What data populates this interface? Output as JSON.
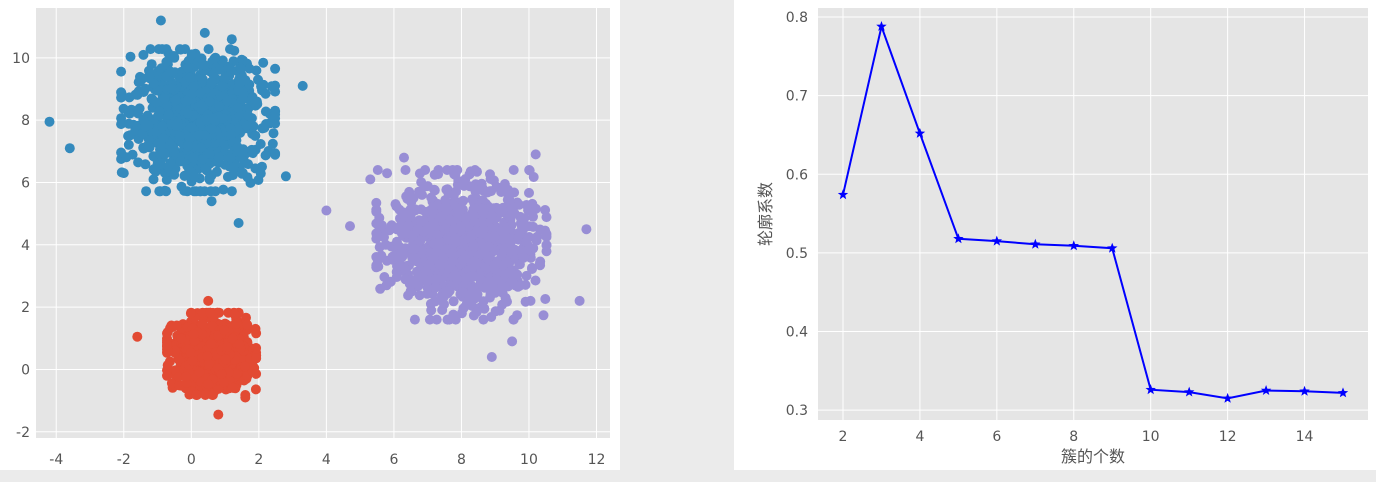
{
  "chart_data": [
    {
      "type": "scatter",
      "title": "",
      "xlabel": "",
      "ylabel": "",
      "xlim": [
        -4.6,
        12.4
      ],
      "ylim": [
        -2.2,
        11.6
      ],
      "xticks": [
        -4,
        -2,
        0,
        2,
        4,
        6,
        8,
        10,
        12
      ],
      "yticks": [
        -2,
        0,
        2,
        4,
        6,
        8,
        10
      ],
      "grid": true,
      "style": "ggplot",
      "series": [
        {
          "color": "#348abd",
          "center": [
            0.2,
            8.0
          ],
          "spread": [
            0.95,
            0.95
          ],
          "count": 1000,
          "outliers": [
            [
              -4.2,
              7.95
            ],
            [
              -0.9,
              11.2
            ],
            [
              0.4,
              10.8
            ],
            [
              1.4,
              4.7
            ],
            [
              3.3,
              9.1
            ],
            [
              2.8,
              6.2
            ],
            [
              1.2,
              10.6
            ],
            [
              -3.6,
              7.1
            ],
            [
              -2.0,
              6.3
            ],
            [
              0.6,
              5.4
            ]
          ]
        },
        {
          "color": "#e24a33",
          "center": [
            0.6,
            0.5
          ],
          "spread": [
            0.55,
            0.55
          ],
          "count": 1000,
          "outliers": [
            [
              -1.6,
              1.05
            ],
            [
              0.8,
              -1.45
            ],
            [
              1.6,
              -0.9
            ],
            [
              0.5,
              2.2
            ],
            [
              1.9,
              1.3
            ]
          ]
        },
        {
          "color": "#988ed5",
          "center": [
            8.0,
            4.0
          ],
          "spread": [
            1.05,
            1.0
          ],
          "count": 1000,
          "outliers": [
            [
              4.0,
              5.1
            ],
            [
              10.2,
              6.9
            ],
            [
              11.7,
              4.5
            ],
            [
              8.9,
              0.4
            ],
            [
              11.5,
              2.2
            ],
            [
              6.3,
              6.8
            ],
            [
              9.5,
              0.9
            ],
            [
              5.3,
              6.1
            ],
            [
              4.7,
              4.6
            ]
          ]
        }
      ]
    },
    {
      "type": "line",
      "title": "",
      "xlabel": "簇的个数",
      "ylabel": "轮廓系数",
      "xlim": [
        1.35,
        15.65
      ],
      "ylim": [
        0.2875,
        0.8115
      ],
      "xticks": [
        2,
        4,
        6,
        8,
        10,
        12,
        14
      ],
      "yticks": [
        0.3,
        0.4,
        0.5,
        0.6,
        0.7,
        0.8
      ],
      "grid": true,
      "style": "ggplot",
      "marker": "star",
      "line_color": "#0000ff",
      "x": [
        2,
        3,
        4,
        5,
        6,
        7,
        8,
        9,
        10,
        11,
        12,
        13,
        14,
        15
      ],
      "y": [
        0.574,
        0.788,
        0.652,
        0.518,
        0.515,
        0.511,
        0.509,
        0.506,
        0.326,
        0.323,
        0.315,
        0.325,
        0.324,
        0.322
      ]
    }
  ]
}
